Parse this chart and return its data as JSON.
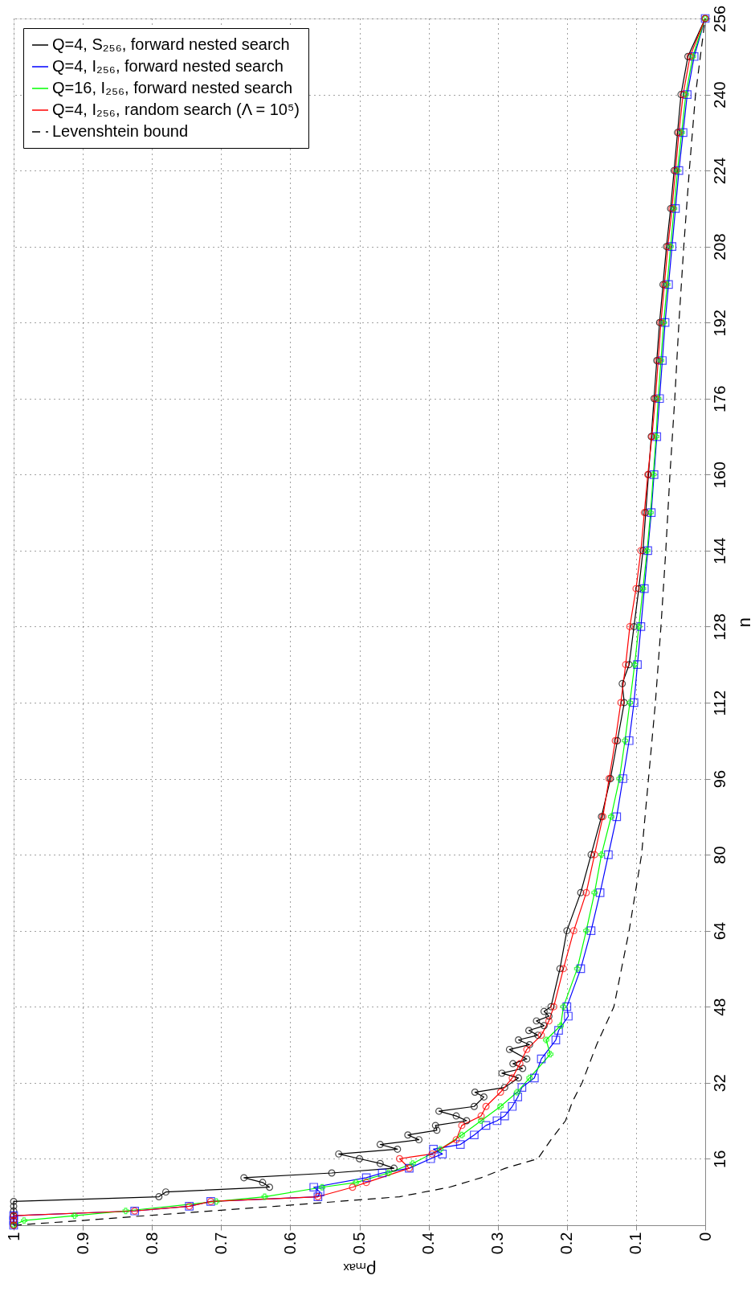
{
  "chart_data": {
    "type": "line",
    "xlabel": "ρₘₐₓ",
    "ylabel": "n",
    "xlim": [
      1,
      0
    ],
    "xticks": [
      1,
      0.9,
      0.8,
      0.7,
      0.6,
      0.5,
      0.4,
      0.3,
      0.2,
      0.1,
      0
    ],
    "ylim": [
      2,
      256
    ],
    "yticks": [
      16,
      32,
      48,
      64,
      80,
      96,
      112,
      128,
      144,
      160,
      176,
      192,
      208,
      224,
      240,
      256
    ],
    "grid": true,
    "legend": "top left",
    "series": [
      {
        "name": "Q=4, S₂₅₆, forward nested search",
        "color": "#000000",
        "marker": "circle",
        "line_style": "solid",
        "values": [
          2,
          3,
          4,
          5,
          6,
          7,
          8,
          9,
          10,
          11,
          12,
          13,
          14,
          15,
          16,
          17,
          18,
          19,
          20,
          21,
          22,
          23,
          24,
          25,
          26,
          27,
          29,
          30,
          31,
          33,
          34,
          35,
          36,
          37,
          39,
          40,
          41,
          42,
          43,
          44,
          45,
          46,
          47,
          48,
          56,
          64,
          72,
          80,
          88,
          96,
          104,
          112,
          116,
          120,
          128,
          136,
          144,
          152,
          160,
          168,
          176,
          184,
          192,
          200,
          208,
          216,
          224,
          232,
          240,
          248,
          256
        ],
        "x": [
          1,
          1,
          1,
          1,
          1,
          1,
          0.79,
          0.78,
          0.63,
          0.64,
          0.667,
          0.54,
          0.45,
          0.47,
          0.5,
          0.53,
          0.445,
          0.47,
          0.414,
          0.43,
          0.388,
          0.39,
          0.345,
          0.36,
          0.385,
          0.334,
          0.32,
          0.333,
          0.29,
          0.27,
          0.294,
          0.264,
          0.278,
          0.258,
          0.283,
          0.254,
          0.27,
          0.242,
          0.255,
          0.233,
          0.244,
          0.226,
          0.233,
          0.223,
          0.21,
          0.2,
          0.18,
          0.165,
          0.15,
          0.137,
          0.127,
          0.117,
          0.12,
          0.11,
          0.103,
          0.096,
          0.09,
          0.086,
          0.082,
          0.078,
          0.074,
          0.07,
          0.066,
          0.061,
          0.056,
          0.05,
          0.045,
          0.04,
          0.035,
          0.025,
          0
        ]
      },
      {
        "name": "Q=4, I₂₅₆, forward nested search",
        "color": "#0000ff",
        "marker": "square",
        "line_style": "solid",
        "values": [
          2,
          3,
          4,
          5,
          6,
          7,
          8,
          9,
          10,
          12,
          13,
          14,
          16,
          17,
          18,
          19,
          21,
          23,
          24,
          25,
          27,
          29,
          31,
          33,
          37,
          41,
          43,
          46,
          48,
          56,
          64,
          72,
          80,
          88,
          96,
          104,
          112,
          120,
          128,
          136,
          144,
          152,
          160,
          168,
          176,
          184,
          192,
          200,
          208,
          216,
          224,
          232,
          240,
          248,
          256
        ],
        "x": [
          1,
          1,
          1,
          0.825,
          0.746,
          0.715,
          0.56,
          0.557,
          0.566,
          0.49,
          0.467,
          0.428,
          0.397,
          0.38,
          0.393,
          0.354,
          0.334,
          0.317,
          0.301,
          0.29,
          0.279,
          0.271,
          0.265,
          0.247,
          0.237,
          0.216,
          0.212,
          0.198,
          0.2,
          0.18,
          0.165,
          0.152,
          0.14,
          0.128,
          0.119,
          0.11,
          0.103,
          0.098,
          0.093,
          0.088,
          0.083,
          0.078,
          0.074,
          0.07,
          0.066,
          0.062,
          0.058,
          0.053,
          0.048,
          0.043,
          0.038,
          0.032,
          0.026,
          0.016,
          0
        ]
      },
      {
        "name": "Q=16, I₂₅₆, forward nested search",
        "color": "#00ff00",
        "marker": "cross",
        "line_style": "solid",
        "values": [
          2,
          3,
          4,
          5,
          7,
          8,
          10,
          11,
          13,
          15,
          18,
          21,
          24,
          27,
          30,
          33,
          38,
          41,
          44,
          48,
          56,
          64,
          72,
          80,
          88,
          96,
          104,
          112,
          120,
          128,
          136,
          144,
          152,
          160,
          168,
          176,
          184,
          192,
          200,
          208,
          216,
          224,
          232,
          240,
          248,
          256
        ],
        "x": [
          1,
          0.985,
          0.912,
          0.838,
          0.707,
          0.637,
          0.554,
          0.505,
          0.458,
          0.423,
          0.383,
          0.352,
          0.324,
          0.296,
          0.272,
          0.254,
          0.224,
          0.23,
          0.209,
          0.205,
          0.185,
          0.172,
          0.16,
          0.15,
          0.136,
          0.124,
          0.116,
          0.109,
          0.102,
          0.096,
          0.09,
          0.084,
          0.079,
          0.075,
          0.071,
          0.068,
          0.064,
          0.06,
          0.055,
          0.05,
          0.045,
          0.04,
          0.034,
          0.028,
          0.018,
          0
        ]
      },
      {
        "name": "Q=4, I₂₅₆, random search (Λ = 10⁵)",
        "color": "#ff0000",
        "marker": "circle",
        "line_style": "solid",
        "values": [
          2,
          3,
          4,
          5,
          6,
          7,
          8,
          10,
          11,
          14,
          16,
          17,
          20,
          23,
          25,
          27,
          30,
          33,
          36,
          39,
          42,
          45,
          48,
          56,
          64,
          72,
          80,
          88,
          96,
          104,
          112,
          120,
          128,
          136,
          144,
          152,
          160,
          168,
          176,
          184,
          192,
          200,
          208,
          216,
          224,
          232,
          240,
          248,
          256
        ],
        "x": [
          1,
          1,
          1,
          0.825,
          0.746,
          0.715,
          0.56,
          0.51,
          0.49,
          0.428,
          0.442,
          0.395,
          0.36,
          0.352,
          0.324,
          0.317,
          0.296,
          0.279,
          0.268,
          0.258,
          0.237,
          0.226,
          0.219,
          0.205,
          0.19,
          0.172,
          0.16,
          0.148,
          0.139,
          0.13,
          0.122,
          0.115,
          0.109,
          0.1,
          0.093,
          0.088,
          0.083,
          0.077,
          0.072,
          0.068,
          0.064,
          0.059,
          0.054,
          0.048,
          0.043,
          0.038,
          0.032,
          0.022,
          0
        ]
      },
      {
        "name": "Levenshtein bound",
        "color": "#000000",
        "marker": "none",
        "line_style": "dashed",
        "values": [
          2,
          3,
          4,
          6,
          8,
          10,
          12,
          14,
          16,
          20,
          24,
          28,
          32,
          40,
          48,
          64,
          80,
          96,
          112,
          128,
          144,
          160,
          176,
          192,
          208,
          224,
          240,
          256
        ],
        "x": [
          1,
          0.9,
          0.81,
          0.62,
          0.442,
          0.37,
          0.324,
          0.289,
          0.242,
          0.223,
          0.202,
          0.192,
          0.178,
          0.157,
          0.132,
          0.11,
          0.092,
          0.082,
          0.072,
          0.064,
          0.057,
          0.051,
          0.044,
          0.038,
          0.031,
          0.023,
          0.014,
          0
        ]
      }
    ]
  }
}
